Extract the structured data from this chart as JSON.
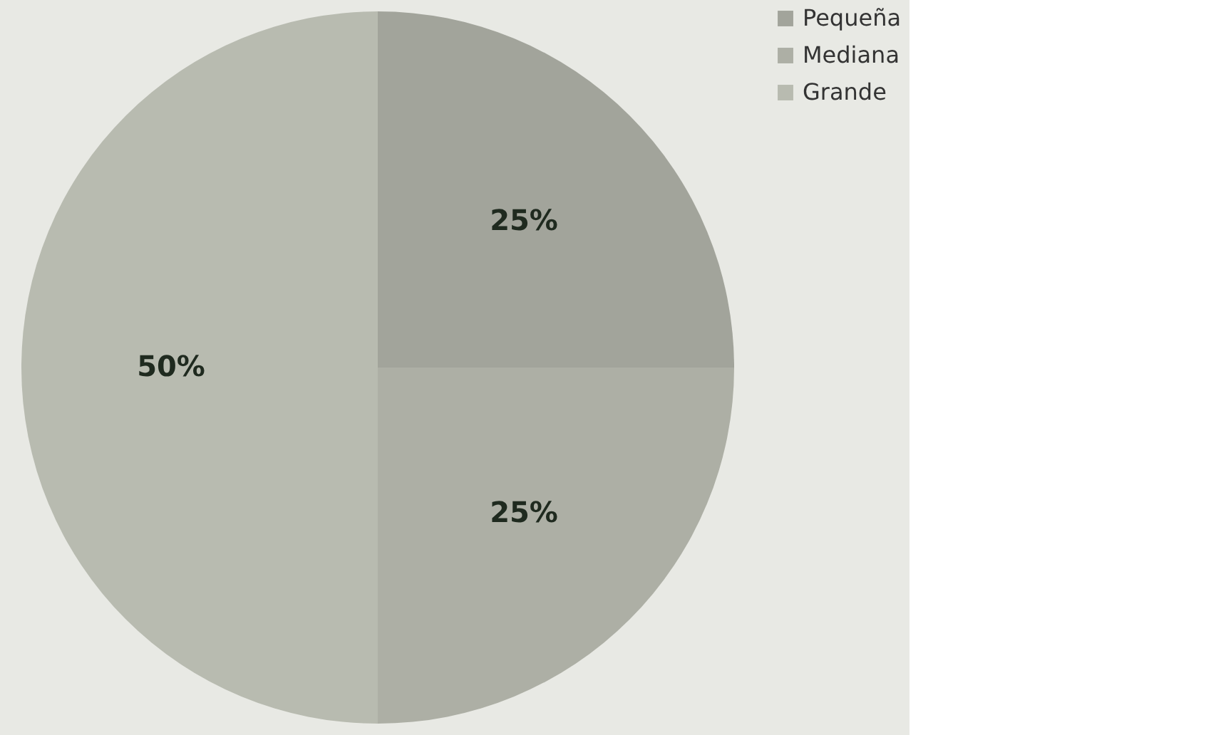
{
  "chart_data": {
    "type": "pie",
    "categories": [
      "Pequeña",
      "Mediana",
      "Grande"
    ],
    "values": [
      25,
      25,
      50
    ],
    "colors": [
      "#a2a49b",
      "#adafa5",
      "#b8bbb0"
    ],
    "value_labels": [
      "25%",
      "25%",
      "50%"
    ],
    "legend": "right"
  }
}
